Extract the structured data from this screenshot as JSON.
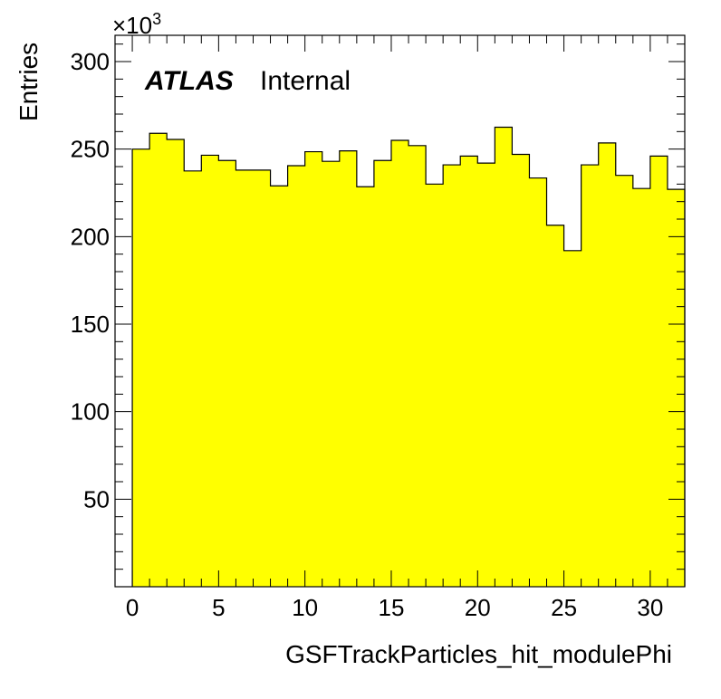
{
  "colors": {
    "fill": "#ffff00",
    "line": "#000000",
    "background": "#ffffff"
  },
  "labels": {
    "experiment": "ATLAS",
    "status": "Internal",
    "exponent_base": "×10",
    "exponent_power": "3"
  },
  "chart_data": {
    "type": "bar",
    "histogram": true,
    "xlabel": "GSFTrackParticles_hit_modulePhi",
    "ylabel": "Entries",
    "y_unit_multiplier": 1000,
    "xlim": [
      -1,
      32
    ],
    "ylim": [
      0,
      315
    ],
    "x_ticks": [
      0,
      5,
      10,
      15,
      20,
      25,
      30
    ],
    "y_ticks": [
      50,
      100,
      150,
      200,
      250,
      300
    ],
    "bin_edges": [
      0,
      1,
      2,
      3,
      4,
      5,
      6,
      7,
      8,
      9,
      10,
      11,
      12,
      13,
      14,
      15,
      16,
      17,
      18,
      19,
      20,
      21,
      22,
      23,
      24,
      25,
      26,
      27,
      28,
      29,
      30,
      31
    ],
    "values": [
      250,
      259,
      255.5,
      237.5,
      246.5,
      243.5,
      238,
      238,
      229,
      240.5,
      248.5,
      243,
      249,
      228.5,
      243.5,
      255,
      252,
      230,
      241,
      246,
      242,
      262.5,
      247,
      233.5,
      206.5,
      192,
      241,
      253.5,
      235,
      227.5,
      246,
      227
    ]
  }
}
